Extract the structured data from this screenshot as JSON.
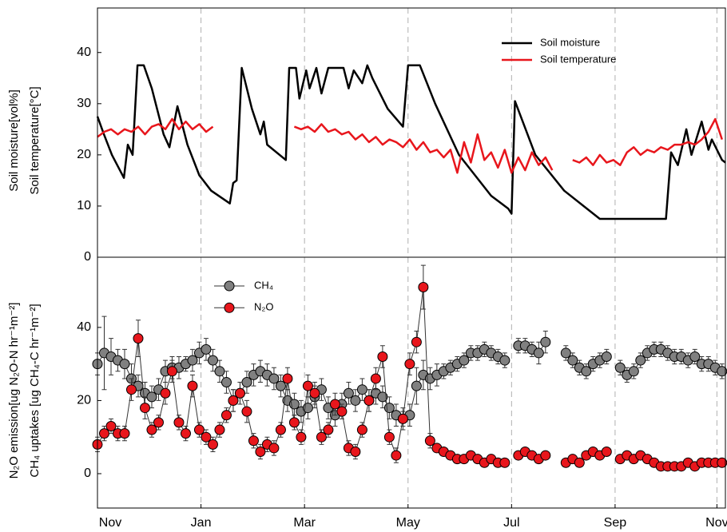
{
  "chart_data": [
    {
      "type": "line",
      "ylabel": "Soil moisture[vol%]",
      "ylabel2": "Soil temperature[°C]",
      "xlim": [
        0,
        370
      ],
      "xticks": [
        0,
        61,
        122,
        183,
        244,
        305,
        365
      ],
      "ylim": [
        0,
        48.7
      ],
      "yticks": [
        0,
        10,
        20,
        30,
        40
      ],
      "grid": "x",
      "legend": "upper right",
      "series": [
        {
          "name": "Soil moisture",
          "color": "#000000",
          "x": [
            0,
            3.8,
            8.5,
            15.6,
            17.9,
            20.7,
            23.6,
            27.3,
            32,
            39,
            42.4,
            47.1,
            53,
            60,
            67,
            78,
            80,
            82,
            85,
            91,
            96,
            98,
            100,
            111,
            113,
            117,
            119,
            123,
            125,
            129,
            132,
            136,
            145,
            148,
            151,
            156,
            159,
            162,
            171,
            180,
            183,
            190,
            199,
            213,
            232,
            242,
            244,
            246,
            258,
            275,
            296,
            335,
            338,
            342,
            347,
            350,
            356,
            360,
            362,
            368,
            370
          ],
          "values": [
            27.5,
            24,
            20,
            15.5,
            22,
            20,
            37.5,
            37.5,
            33,
            24,
            21.5,
            29.5,
            22,
            16,
            13,
            10.5,
            14.5,
            15,
            37,
            29,
            24,
            26.5,
            22,
            19,
            37,
            37,
            31,
            36.5,
            33,
            37,
            32,
            37,
            37,
            33,
            36.5,
            34,
            37.5,
            35,
            29,
            25.5,
            37.5,
            37.5,
            30,
            20,
            12,
            9.5,
            8.5,
            30.5,
            20,
            13,
            7.5,
            7.5,
            20.5,
            18,
            25,
            20,
            26.5,
            21,
            23,
            19,
            18.5
          ]
        },
        {
          "name": "Soil temperature",
          "color": "#e8161c",
          "x": [
            0,
            4,
            8,
            12,
            16,
            20,
            24,
            28,
            32,
            36,
            40,
            44,
            48,
            52,
            56,
            60,
            64,
            68,
            72,
            76,
            80,
            84,
            88,
            92,
            96,
            100,
            104,
            108,
            112,
            116,
            120,
            124,
            128,
            132,
            136,
            140,
            144,
            148,
            152,
            156,
            160,
            164,
            168,
            172,
            176,
            180,
            184,
            188,
            192,
            196,
            200,
            204,
            208,
            212,
            216,
            220,
            224,
            228,
            232,
            236,
            240,
            244,
            248,
            252,
            256,
            260,
            264,
            268,
            272,
            276,
            280,
            284,
            288,
            292,
            296,
            300,
            304,
            308,
            312,
            316,
            320,
            324,
            328,
            332,
            336,
            340,
            344,
            348,
            352,
            356,
            360,
            364,
            368
          ],
          "values": [
            23.5,
            24.5,
            25,
            24,
            25,
            24.5,
            25.5,
            24,
            25.5,
            26,
            25,
            27,
            25,
            26.5,
            25,
            26,
            24.5,
            25.5,
            null,
            null,
            null,
            null,
            null,
            null,
            null,
            null,
            null,
            null,
            null,
            25.5,
            25,
            25.5,
            24.5,
            26,
            24.5,
            25,
            24,
            24.5,
            23,
            24,
            22.5,
            23.5,
            22,
            23,
            22.5,
            21.5,
            23,
            21,
            22.5,
            20.5,
            21,
            19.5,
            21,
            16.5,
            22.5,
            18.5,
            24,
            19,
            20.5,
            17.5,
            21,
            16.5,
            19.5,
            17,
            20.5,
            18,
            19.5,
            17,
            null,
            null,
            19,
            18.5,
            19.5,
            18,
            20,
            18.5,
            19,
            18,
            20.5,
            21.5,
            20,
            21,
            20.5,
            21.5,
            21,
            22,
            22,
            22.5,
            22,
            23,
            24.5,
            27,
            23
          ]
        }
      ]
    },
    {
      "type": "line",
      "ylabel": "N₂O emission[ug N₂O-N hr⁻¹m⁻²]",
      "ylabel2": "CH₄ uptakes [ug CH₄-C hr⁻¹m⁻²]",
      "xlim": [
        0,
        370
      ],
      "xticks": [
        {
          "value": 0,
          "label": "Nov"
        },
        {
          "value": 61,
          "label": "Jan"
        },
        {
          "value": 122,
          "label": "Mar"
        },
        {
          "value": 183,
          "label": "May"
        },
        {
          "value": 244,
          "label": "Jul"
        },
        {
          "value": 305,
          "label": "Sep"
        },
        {
          "value": 365,
          "label": "Nov"
        }
      ],
      "ylim": [
        -9.4,
        59.2
      ],
      "yticks": [
        0,
        20,
        40
      ],
      "grid": "x",
      "legend": "upper left",
      "x": [
        0,
        4,
        8,
        12,
        16,
        20,
        24,
        28,
        32,
        36,
        40,
        44,
        48,
        52,
        56,
        60,
        64,
        68,
        72,
        76,
        80,
        84,
        88,
        92,
        96,
        100,
        104,
        108,
        112,
        116,
        120,
        124,
        128,
        132,
        136,
        140,
        144,
        148,
        152,
        156,
        160,
        164,
        168,
        172,
        176,
        180,
        184,
        188,
        192,
        196,
        200,
        204,
        208,
        212,
        216,
        220,
        224,
        228,
        232,
        236,
        240,
        244,
        248,
        252,
        256,
        260,
        264,
        268,
        272,
        276,
        280,
        284,
        288,
        292,
        296,
        300,
        304,
        308,
        312,
        316,
        320,
        324,
        328,
        332,
        336,
        340,
        344,
        348,
        352,
        356,
        360,
        364,
        368
      ],
      "series": [
        {
          "name": "CH₄",
          "color": "#808080",
          "values": [
            30,
            33,
            32,
            31,
            30,
            26,
            24,
            22,
            21,
            23,
            28,
            29,
            29,
            30,
            31,
            33,
            34,
            31,
            28,
            25,
            20,
            22,
            25,
            27,
            28,
            27,
            26,
            24,
            20,
            19,
            17,
            18,
            21,
            23,
            18,
            16,
            19,
            22,
            20,
            23,
            20,
            22,
            21,
            18,
            16,
            15,
            16,
            24,
            27,
            26,
            27,
            28,
            29,
            30,
            31,
            33,
            33,
            34,
            33,
            32,
            31,
            null,
            35,
            35,
            34,
            33,
            36,
            null,
            null,
            33,
            31,
            29,
            28,
            30,
            31,
            32,
            null,
            29,
            27,
            28,
            31,
            33,
            34,
            34,
            33,
            32,
            32,
            31,
            32,
            30,
            30,
            29,
            28
          ],
          "errors": [
            3,
            10,
            5,
            3,
            4,
            4,
            3,
            3,
            3,
            3,
            3,
            3,
            3,
            2,
            3,
            3,
            3,
            3,
            3,
            3,
            3,
            3,
            3,
            3,
            3,
            3,
            3,
            3,
            3,
            3,
            3,
            3,
            3,
            3,
            3,
            3,
            3,
            3,
            3,
            3,
            3,
            3,
            3,
            3,
            3,
            3,
            3,
            5,
            4,
            3,
            3,
            2,
            2,
            2,
            2,
            2,
            2,
            2,
            2,
            2,
            2,
            null,
            2,
            2,
            2,
            3,
            3,
            null,
            null,
            2,
            2,
            2,
            2,
            2,
            2,
            2,
            null,
            2,
            2,
            2,
            2,
            2,
            2,
            2,
            2,
            2,
            2,
            2,
            2,
            2,
            2,
            2,
            2
          ]
        },
        {
          "name": "N₂O",
          "color": "#e8161c",
          "values": [
            8,
            11,
            13,
            11,
            11,
            23,
            37,
            18,
            12,
            14,
            22,
            28,
            14,
            11,
            24,
            12,
            10,
            8,
            12,
            16,
            20,
            22,
            17,
            9,
            6,
            8,
            7,
            12,
            26,
            14,
            10,
            24,
            22,
            10,
            12,
            19,
            17,
            7,
            6,
            12,
            20,
            26,
            32,
            10,
            5,
            15,
            30,
            36,
            51,
            9,
            7,
            6,
            5,
            4,
            4,
            5,
            4,
            3,
            4,
            3,
            3,
            null,
            5,
            6,
            5,
            4,
            5,
            null,
            null,
            3,
            4,
            3,
            5,
            6,
            5,
            6,
            null,
            4,
            5,
            4,
            5,
            4,
            3,
            2,
            2,
            2,
            2,
            3,
            2,
            3,
            3,
            3,
            3
          ],
          "errors": [
            2,
            2,
            2,
            2,
            2,
            3,
            5,
            3,
            2,
            2,
            3,
            3,
            2,
            2,
            3,
            2,
            2,
            2,
            2,
            2,
            3,
            3,
            3,
            2,
            2,
            2,
            2,
            2,
            3,
            2,
            2,
            3,
            3,
            2,
            2,
            3,
            2,
            2,
            2,
            2,
            3,
            3,
            3,
            2,
            2,
            2,
            3,
            3,
            6,
            2,
            1,
            1,
            1,
            1,
            1,
            1,
            1,
            1,
            1,
            1,
            1,
            null,
            1,
            1,
            1,
            1,
            1,
            null,
            null,
            1,
            1,
            1,
            1,
            1,
            1,
            1,
            null,
            1,
            1,
            1,
            1,
            1,
            1,
            1,
            1,
            1,
            1,
            1,
            1,
            1,
            1,
            1,
            1
          ]
        }
      ]
    }
  ]
}
